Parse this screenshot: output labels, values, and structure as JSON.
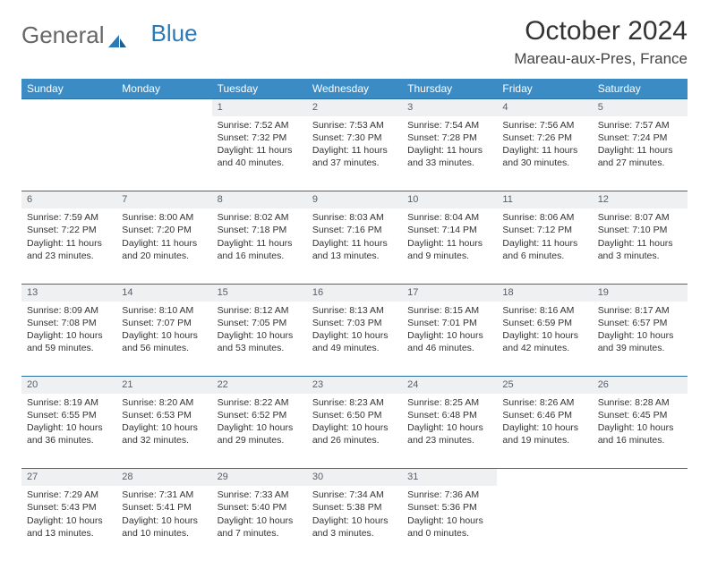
{
  "logo": {
    "general": "General",
    "blue": "Blue"
  },
  "header": {
    "month_title": "October 2024",
    "location": "Mareau-aux-Pres, France"
  },
  "colors": {
    "header_bg": "#3b8bc4",
    "daynum_bg": "#eef0f2",
    "rule": "#2a6fa3"
  },
  "dow": [
    "Sunday",
    "Monday",
    "Tuesday",
    "Wednesday",
    "Thursday",
    "Friday",
    "Saturday"
  ],
  "weeks": [
    {
      "nums": [
        "",
        "",
        "1",
        "2",
        "3",
        "4",
        "5"
      ],
      "cells": [
        null,
        null,
        {
          "sunrise": "Sunrise: 7:52 AM",
          "sunset": "Sunset: 7:32 PM",
          "dl1": "Daylight: 11 hours",
          "dl2": "and 40 minutes."
        },
        {
          "sunrise": "Sunrise: 7:53 AM",
          "sunset": "Sunset: 7:30 PM",
          "dl1": "Daylight: 11 hours",
          "dl2": "and 37 minutes."
        },
        {
          "sunrise": "Sunrise: 7:54 AM",
          "sunset": "Sunset: 7:28 PM",
          "dl1": "Daylight: 11 hours",
          "dl2": "and 33 minutes."
        },
        {
          "sunrise": "Sunrise: 7:56 AM",
          "sunset": "Sunset: 7:26 PM",
          "dl1": "Daylight: 11 hours",
          "dl2": "and 30 minutes."
        },
        {
          "sunrise": "Sunrise: 7:57 AM",
          "sunset": "Sunset: 7:24 PM",
          "dl1": "Daylight: 11 hours",
          "dl2": "and 27 minutes."
        }
      ]
    },
    {
      "nums": [
        "6",
        "7",
        "8",
        "9",
        "10",
        "11",
        "12"
      ],
      "cells": [
        {
          "sunrise": "Sunrise: 7:59 AM",
          "sunset": "Sunset: 7:22 PM",
          "dl1": "Daylight: 11 hours",
          "dl2": "and 23 minutes."
        },
        {
          "sunrise": "Sunrise: 8:00 AM",
          "sunset": "Sunset: 7:20 PM",
          "dl1": "Daylight: 11 hours",
          "dl2": "and 20 minutes."
        },
        {
          "sunrise": "Sunrise: 8:02 AM",
          "sunset": "Sunset: 7:18 PM",
          "dl1": "Daylight: 11 hours",
          "dl2": "and 16 minutes."
        },
        {
          "sunrise": "Sunrise: 8:03 AM",
          "sunset": "Sunset: 7:16 PM",
          "dl1": "Daylight: 11 hours",
          "dl2": "and 13 minutes."
        },
        {
          "sunrise": "Sunrise: 8:04 AM",
          "sunset": "Sunset: 7:14 PM",
          "dl1": "Daylight: 11 hours",
          "dl2": "and 9 minutes."
        },
        {
          "sunrise": "Sunrise: 8:06 AM",
          "sunset": "Sunset: 7:12 PM",
          "dl1": "Daylight: 11 hours",
          "dl2": "and 6 minutes."
        },
        {
          "sunrise": "Sunrise: 8:07 AM",
          "sunset": "Sunset: 7:10 PM",
          "dl1": "Daylight: 11 hours",
          "dl2": "and 3 minutes."
        }
      ]
    },
    {
      "nums": [
        "13",
        "14",
        "15",
        "16",
        "17",
        "18",
        "19"
      ],
      "cells": [
        {
          "sunrise": "Sunrise: 8:09 AM",
          "sunset": "Sunset: 7:08 PM",
          "dl1": "Daylight: 10 hours",
          "dl2": "and 59 minutes."
        },
        {
          "sunrise": "Sunrise: 8:10 AM",
          "sunset": "Sunset: 7:07 PM",
          "dl1": "Daylight: 10 hours",
          "dl2": "and 56 minutes."
        },
        {
          "sunrise": "Sunrise: 8:12 AM",
          "sunset": "Sunset: 7:05 PM",
          "dl1": "Daylight: 10 hours",
          "dl2": "and 53 minutes."
        },
        {
          "sunrise": "Sunrise: 8:13 AM",
          "sunset": "Sunset: 7:03 PM",
          "dl1": "Daylight: 10 hours",
          "dl2": "and 49 minutes."
        },
        {
          "sunrise": "Sunrise: 8:15 AM",
          "sunset": "Sunset: 7:01 PM",
          "dl1": "Daylight: 10 hours",
          "dl2": "and 46 minutes."
        },
        {
          "sunrise": "Sunrise: 8:16 AM",
          "sunset": "Sunset: 6:59 PM",
          "dl1": "Daylight: 10 hours",
          "dl2": "and 42 minutes."
        },
        {
          "sunrise": "Sunrise: 8:17 AM",
          "sunset": "Sunset: 6:57 PM",
          "dl1": "Daylight: 10 hours",
          "dl2": "and 39 minutes."
        }
      ]
    },
    {
      "nums": [
        "20",
        "21",
        "22",
        "23",
        "24",
        "25",
        "26"
      ],
      "cells": [
        {
          "sunrise": "Sunrise: 8:19 AM",
          "sunset": "Sunset: 6:55 PM",
          "dl1": "Daylight: 10 hours",
          "dl2": "and 36 minutes."
        },
        {
          "sunrise": "Sunrise: 8:20 AM",
          "sunset": "Sunset: 6:53 PM",
          "dl1": "Daylight: 10 hours",
          "dl2": "and 32 minutes."
        },
        {
          "sunrise": "Sunrise: 8:22 AM",
          "sunset": "Sunset: 6:52 PM",
          "dl1": "Daylight: 10 hours",
          "dl2": "and 29 minutes."
        },
        {
          "sunrise": "Sunrise: 8:23 AM",
          "sunset": "Sunset: 6:50 PM",
          "dl1": "Daylight: 10 hours",
          "dl2": "and 26 minutes."
        },
        {
          "sunrise": "Sunrise: 8:25 AM",
          "sunset": "Sunset: 6:48 PM",
          "dl1": "Daylight: 10 hours",
          "dl2": "and 23 minutes."
        },
        {
          "sunrise": "Sunrise: 8:26 AM",
          "sunset": "Sunset: 6:46 PM",
          "dl1": "Daylight: 10 hours",
          "dl2": "and 19 minutes."
        },
        {
          "sunrise": "Sunrise: 8:28 AM",
          "sunset": "Sunset: 6:45 PM",
          "dl1": "Daylight: 10 hours",
          "dl2": "and 16 minutes."
        }
      ]
    },
    {
      "nums": [
        "27",
        "28",
        "29",
        "30",
        "31",
        "",
        ""
      ],
      "cells": [
        {
          "sunrise": "Sunrise: 7:29 AM",
          "sunset": "Sunset: 5:43 PM",
          "dl1": "Daylight: 10 hours",
          "dl2": "and 13 minutes."
        },
        {
          "sunrise": "Sunrise: 7:31 AM",
          "sunset": "Sunset: 5:41 PM",
          "dl1": "Daylight: 10 hours",
          "dl2": "and 10 minutes."
        },
        {
          "sunrise": "Sunrise: 7:33 AM",
          "sunset": "Sunset: 5:40 PM",
          "dl1": "Daylight: 10 hours",
          "dl2": "and 7 minutes."
        },
        {
          "sunrise": "Sunrise: 7:34 AM",
          "sunset": "Sunset: 5:38 PM",
          "dl1": "Daylight: 10 hours",
          "dl2": "and 3 minutes."
        },
        {
          "sunrise": "Sunrise: 7:36 AM",
          "sunset": "Sunset: 5:36 PM",
          "dl1": "Daylight: 10 hours",
          "dl2": "and 0 minutes."
        },
        null,
        null
      ]
    }
  ]
}
